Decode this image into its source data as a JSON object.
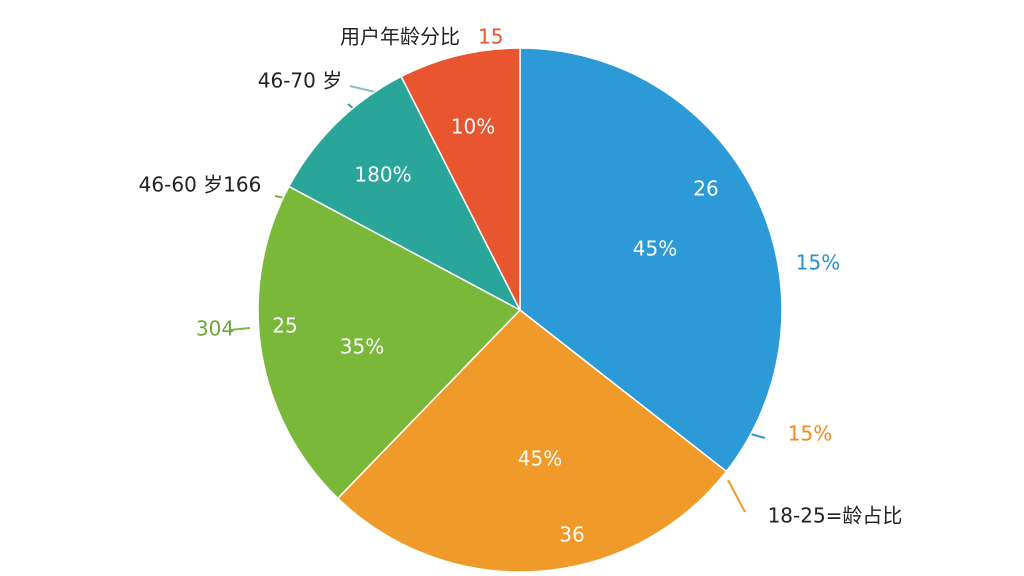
{
  "chart_data": {
    "type": "pie",
    "title": "用户年龄分比",
    "values": [
      35.6,
      26.7,
      20.6,
      9.7,
      7.5
    ],
    "colors": [
      "#2b9ad6",
      "#f09a2a",
      "#7ab83a",
      "#2aa59a",
      "#e8552e"
    ],
    "annotations": [
      "15",
      "46-70 岁",
      "46-60 岁166",
      "304",
      "25",
      "35%",
      "180%",
      "10%",
      "26",
      "45%",
      "15%",
      "15%",
      "45%",
      "36",
      "18-25=龄占比"
    ]
  }
}
